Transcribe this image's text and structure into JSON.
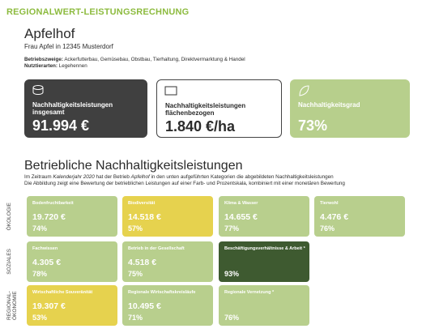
{
  "header": {
    "title": "REGIONALWERT-LEISTUNGSRECHNUNG"
  },
  "farm": {
    "name": "Apfelhof",
    "owner": "Frau Apfel in 12345 Musterdorf",
    "branches": {
      "label": "Betriebszweige:",
      "value": "Ackerfutterbau, Gemüsebau, Obstbau, Tierhaltung, Direktvermarktung & Handel"
    },
    "animals": {
      "label": "Nutztierarten:",
      "value": "Legehennen"
    }
  },
  "summary": [
    {
      "label": "Nachhaltigkeitsleistungen insgesamt",
      "value": "91.994 €"
    },
    {
      "label": "Nachhaltigkeitsleistungen flächenbezogen",
      "value": "1.840 €/ha"
    },
    {
      "label": "Nachhaltigkeitsgrad",
      "value": "73%"
    }
  ],
  "section": {
    "title": "Betriebliche Nachhaltigkeitsleistungen",
    "intro": [
      [
        "Im Zeitraum ",
        "Kalenderjahr 2020",
        " hat der Betrieb ",
        "Apfelhof",
        " in den unten aufgeführten Kategorien die abgebildeten Nachhaltigkeitsleistungen"
      ],
      [
        "Die Abbildung zeigt eine Bewertung der betrieblichen Leistungen auf einer Farb- und Prozentskala, kombiniert mit einer monetären Bewertung"
      ]
    ]
  },
  "categories": [
    {
      "label": "ÖKOLOGIE",
      "tiles": [
        {
          "name": "Bodenfruchtbarkeit",
          "amount": "19.720 €",
          "percent": "74%",
          "color": "#b8cf8d"
        },
        {
          "name": "Biodiversität",
          "amount": "14.518 €",
          "percent": "57%",
          "color": "#e6d24e"
        },
        {
          "name": "Klima & Wasser",
          "amount": "14.655 €",
          "percent": "77%",
          "color": "#b8cf8d"
        },
        {
          "name": "Tierwohl",
          "amount": "4.476 €",
          "percent": "76%",
          "color": "#b8cf8d"
        }
      ]
    },
    {
      "label": "SOZIALES",
      "tiles": [
        {
          "name": "Fachwissen",
          "amount": "4.305 €",
          "percent": "78%",
          "color": "#b8cf8d"
        },
        {
          "name": "Betrieb in der Gesellschaft",
          "amount": "4.518 €",
          "percent": "75%",
          "color": "#b8cf8d"
        },
        {
          "name": "Beschäftigungsverhältnisse & Arbeit *",
          "percent": "93%",
          "color": "#3e5a30"
        }
      ]
    },
    {
      "label": "REGIONAL-ÖKONOMIE",
      "tiles": [
        {
          "name": "Wirtschaftliche Souveränität",
          "amount": "19.307 €",
          "percent": "53%",
          "color": "#e6d24e"
        },
        {
          "name": "Regionale Wirtschaftskreisläufe",
          "amount": "10.495 €",
          "percent": "71%",
          "color": "#b8cf8d"
        },
        {
          "name": "Regionale Vernetzung *",
          "percent": "76%",
          "color": "#b8cf8d"
        }
      ]
    }
  ]
}
